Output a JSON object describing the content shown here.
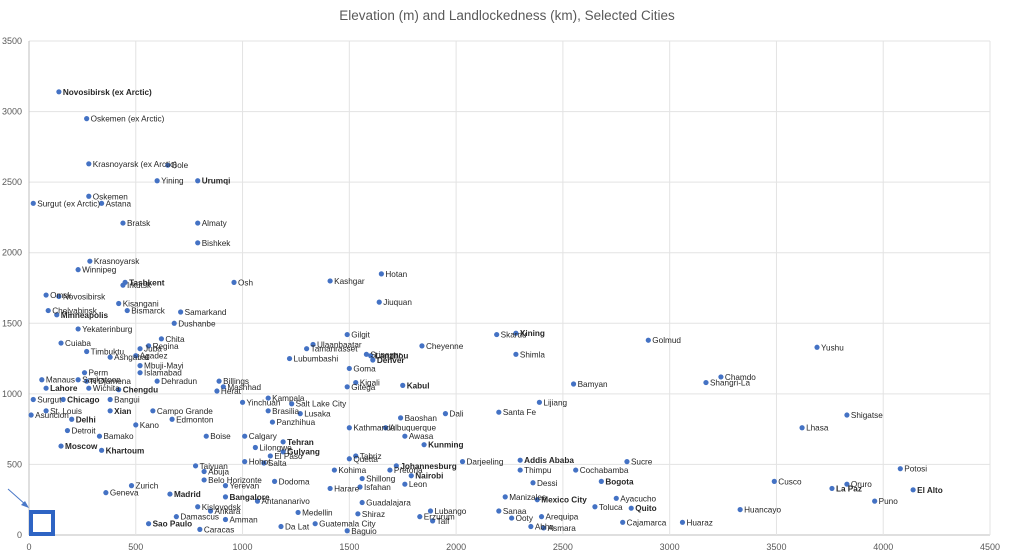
{
  "chart_data": {
    "type": "scatter",
    "title": "Elevation (m) and Landlockedness (km), Selected Cities",
    "xlabel": "",
    "ylabel": "",
    "xlim": [
      0,
      4500
    ],
    "ylim": [
      0,
      3500
    ],
    "xticks": [
      "0",
      "500",
      "1000",
      "1500",
      "2000",
      "2500",
      "3000",
      "3500",
      "4000",
      "4500"
    ],
    "yticks": [
      "0",
      "500",
      "1000",
      "1500",
      "2000",
      "2500",
      "3000",
      "3500"
    ],
    "grid": true,
    "legend": "none",
    "point_color": "#4472c4",
    "points": [
      {
        "x": 140,
        "y": 3140,
        "label": "Novosibirsk (ex Arctic)",
        "bold": true
      },
      {
        "x": 270,
        "y": 2950,
        "label": "Oskemen (ex Arctic)"
      },
      {
        "x": 280,
        "y": 2630,
        "label": "Krasnoyarsk (ex Arctic)"
      },
      {
        "x": 650,
        "y": 2620,
        "label": "Bole"
      },
      {
        "x": 600,
        "y": 2510,
        "label": "Yining"
      },
      {
        "x": 790,
        "y": 2510,
        "label": "Urumqi",
        "bold": true
      },
      {
        "x": 280,
        "y": 2400,
        "label": "Oskemen"
      },
      {
        "x": 340,
        "y": 2350,
        "label": "Astana"
      },
      {
        "x": 20,
        "y": 2350,
        "label": "Surgut (ex Arctic)"
      },
      {
        "x": 440,
        "y": 2210,
        "label": "Bratsk"
      },
      {
        "x": 790,
        "y": 2210,
        "label": "Almaty"
      },
      {
        "x": 790,
        "y": 2070,
        "label": "Bishkek"
      },
      {
        "x": 285,
        "y": 1940,
        "label": "Krasnoyarsk"
      },
      {
        "x": 230,
        "y": 1880,
        "label": "Winnipeg"
      },
      {
        "x": 1650,
        "y": 1850,
        "label": "Hotan"
      },
      {
        "x": 1410,
        "y": 1800,
        "label": "Kashgar"
      },
      {
        "x": 450,
        "y": 1790,
        "label": "Tashkent",
        "bold": true
      },
      {
        "x": 440,
        "y": 1770,
        "label": "Irkutsk"
      },
      {
        "x": 960,
        "y": 1790,
        "label": "Osh"
      },
      {
        "x": 80,
        "y": 1700,
        "label": "Omsk"
      },
      {
        "x": 140,
        "y": 1690,
        "label": "Novosibirsk"
      },
      {
        "x": 1640,
        "y": 1650,
        "label": "Jiuquan"
      },
      {
        "x": 420,
        "y": 1640,
        "label": "Kisangani"
      },
      {
        "x": 90,
        "y": 1590,
        "label": "Chelyabinsk"
      },
      {
        "x": 460,
        "y": 1590,
        "label": "Bismarck"
      },
      {
        "x": 710,
        "y": 1580,
        "label": "Samarkand"
      },
      {
        "x": 130,
        "y": 1560,
        "label": "Minneapolis",
        "bold": true
      },
      {
        "x": 680,
        "y": 1500,
        "label": "Dushanbe"
      },
      {
        "x": 230,
        "y": 1460,
        "label": "Yekaterinburg"
      },
      {
        "x": 1490,
        "y": 1420,
        "label": "Gilgit"
      },
      {
        "x": 2190,
        "y": 1420,
        "label": "Skardu"
      },
      {
        "x": 2280,
        "y": 1430,
        "label": "Xining",
        "bold": true
      },
      {
        "x": 2900,
        "y": 1380,
        "label": "Golmud"
      },
      {
        "x": 620,
        "y": 1390,
        "label": "Chita"
      },
      {
        "x": 150,
        "y": 1360,
        "label": "Cuiaba"
      },
      {
        "x": 560,
        "y": 1340,
        "label": "Regina"
      },
      {
        "x": 1330,
        "y": 1350,
        "label": "Ulaanbaatar"
      },
      {
        "x": 1840,
        "y": 1340,
        "label": "Cheyenne"
      },
      {
        "x": 3690,
        "y": 1330,
        "label": "Yushu"
      },
      {
        "x": 1300,
        "y": 1320,
        "label": "Tamanrasset"
      },
      {
        "x": 520,
        "y": 1320,
        "label": "Juba"
      },
      {
        "x": 270,
        "y": 1300,
        "label": "Timbuktu"
      },
      {
        "x": 1580,
        "y": 1280,
        "label": "Srinagar"
      },
      {
        "x": 1600,
        "y": 1270,
        "label": "Lanzhou",
        "bold": true
      },
      {
        "x": 2280,
        "y": 1280,
        "label": "Shimla"
      },
      {
        "x": 500,
        "y": 1270,
        "label": "Agadez"
      },
      {
        "x": 380,
        "y": 1260,
        "label": "Ashgabat"
      },
      {
        "x": 1220,
        "y": 1250,
        "label": "Lubumbashi"
      },
      {
        "x": 1610,
        "y": 1240,
        "label": "Denver",
        "bold": true
      },
      {
        "x": 520,
        "y": 1200,
        "label": "Mbuji-Mayi"
      },
      {
        "x": 1500,
        "y": 1180,
        "label": "Goma"
      },
      {
        "x": 260,
        "y": 1150,
        "label": "Perm"
      },
      {
        "x": 520,
        "y": 1150,
        "label": "Islamabad"
      },
      {
        "x": 230,
        "y": 1100,
        "label": "Saskatoon"
      },
      {
        "x": 3240,
        "y": 1120,
        "label": "Chamdo"
      },
      {
        "x": 60,
        "y": 1100,
        "label": "Manaus"
      },
      {
        "x": 270,
        "y": 1090,
        "label": "N'Djamena"
      },
      {
        "x": 890,
        "y": 1090,
        "label": "Billings"
      },
      {
        "x": 600,
        "y": 1090,
        "label": "Dehradun"
      },
      {
        "x": 3170,
        "y": 1080,
        "label": "Shangri-La"
      },
      {
        "x": 2550,
        "y": 1070,
        "label": "Bamyan"
      },
      {
        "x": 1530,
        "y": 1080,
        "label": "Kigali"
      },
      {
        "x": 1750,
        "y": 1060,
        "label": "Kabul",
        "bold": true
      },
      {
        "x": 910,
        "y": 1050,
        "label": "Mashhad"
      },
      {
        "x": 80,
        "y": 1040,
        "label": "Lahore",
        "bold": true
      },
      {
        "x": 280,
        "y": 1040,
        "label": "Wichita"
      },
      {
        "x": 420,
        "y": 1030,
        "label": "Chengdu",
        "bold": true
      },
      {
        "x": 1490,
        "y": 1050,
        "label": "Gitega"
      },
      {
        "x": 880,
        "y": 1020,
        "label": "Herat"
      },
      {
        "x": 20,
        "y": 960,
        "label": "Surgut"
      },
      {
        "x": 160,
        "y": 960,
        "label": "Chicago",
        "bold": true
      },
      {
        "x": 380,
        "y": 960,
        "label": "Bangui"
      },
      {
        "x": 1120,
        "y": 970,
        "label": "Kampala"
      },
      {
        "x": 2390,
        "y": 940,
        "label": "Lijiang"
      },
      {
        "x": 1000,
        "y": 940,
        "label": "Yinchuan"
      },
      {
        "x": 1230,
        "y": 930,
        "label": "Salt Lake City"
      },
      {
        "x": 80,
        "y": 880,
        "label": "St. Louis"
      },
      {
        "x": 380,
        "y": 880,
        "label": "Xian",
        "bold": true
      },
      {
        "x": 580,
        "y": 880,
        "label": "Campo Grande"
      },
      {
        "x": 1120,
        "y": 880,
        "label": "Brasilia"
      },
      {
        "x": 2200,
        "y": 870,
        "label": "Santa Fe"
      },
      {
        "x": 1950,
        "y": 860,
        "label": "Dali"
      },
      {
        "x": 3830,
        "y": 850,
        "label": "Shigatse"
      },
      {
        "x": 1270,
        "y": 860,
        "label": "Lusaka"
      },
      {
        "x": 10,
        "y": 850,
        "label": "Asuncion"
      },
      {
        "x": 200,
        "y": 820,
        "label": "Delhi",
        "bold": true
      },
      {
        "x": 1740,
        "y": 830,
        "label": "Baoshan"
      },
      {
        "x": 670,
        "y": 820,
        "label": "Edmonton"
      },
      {
        "x": 1140,
        "y": 800,
        "label": "Panzhihua"
      },
      {
        "x": 500,
        "y": 780,
        "label": "Kano"
      },
      {
        "x": 1670,
        "y": 760,
        "label": "Albuquerque"
      },
      {
        "x": 3620,
        "y": 760,
        "label": "Lhasa"
      },
      {
        "x": 1500,
        "y": 760,
        "label": "Kathmandu"
      },
      {
        "x": 180,
        "y": 740,
        "label": "Detroit"
      },
      {
        "x": 330,
        "y": 700,
        "label": "Bamako"
      },
      {
        "x": 1010,
        "y": 700,
        "label": "Calgary"
      },
      {
        "x": 830,
        "y": 700,
        "label": "Boise"
      },
      {
        "x": 1760,
        "y": 700,
        "label": "Awasa"
      },
      {
        "x": 1190,
        "y": 660,
        "label": "Tehran",
        "bold": true
      },
      {
        "x": 1850,
        "y": 640,
        "label": "Kunming",
        "bold": true
      },
      {
        "x": 150,
        "y": 630,
        "label": "Moscow",
        "bold": true
      },
      {
        "x": 340,
        "y": 600,
        "label": "Khartoum",
        "bold": true
      },
      {
        "x": 1060,
        "y": 620,
        "label": "Lilongwe"
      },
      {
        "x": 1190,
        "y": 590,
        "label": "Gulyang",
        "bold": true
      },
      {
        "x": 1130,
        "y": 560,
        "label": "El Paso"
      },
      {
        "x": 1530,
        "y": 560,
        "label": "Tabriz"
      },
      {
        "x": 1500,
        "y": 540,
        "label": "Quetta"
      },
      {
        "x": 1010,
        "y": 520,
        "label": "Hohot"
      },
      {
        "x": 1100,
        "y": 510,
        "label": "Salta"
      },
      {
        "x": 2030,
        "y": 520,
        "label": "Darjeeling"
      },
      {
        "x": 2300,
        "y": 530,
        "label": "Addis Ababa",
        "bold": true
      },
      {
        "x": 2800,
        "y": 520,
        "label": "Sucre"
      },
      {
        "x": 780,
        "y": 490,
        "label": "Taiyuan"
      },
      {
        "x": 1720,
        "y": 490,
        "label": "Johannesburg",
        "bold": true
      },
      {
        "x": 1690,
        "y": 460,
        "label": "Pretoria"
      },
      {
        "x": 4080,
        "y": 470,
        "label": "Potosi"
      },
      {
        "x": 1430,
        "y": 460,
        "label": "Kohima"
      },
      {
        "x": 2300,
        "y": 460,
        "label": "Thimpu"
      },
      {
        "x": 2560,
        "y": 460,
        "label": "Cochabamba"
      },
      {
        "x": 820,
        "y": 450,
        "label": "Abuja"
      },
      {
        "x": 1790,
        "y": 420,
        "label": "Nairobi",
        "bold": true
      },
      {
        "x": 1560,
        "y": 400,
        "label": "Shillong"
      },
      {
        "x": 820,
        "y": 390,
        "label": "Belo Horizonte"
      },
      {
        "x": 1150,
        "y": 380,
        "label": "Dodoma"
      },
      {
        "x": 2360,
        "y": 370,
        "label": "Dessi"
      },
      {
        "x": 2680,
        "y": 380,
        "label": "Bogota",
        "bold": true
      },
      {
        "x": 3490,
        "y": 380,
        "label": "Cusco"
      },
      {
        "x": 3830,
        "y": 360,
        "label": "Oruro"
      },
      {
        "x": 480,
        "y": 350,
        "label": "Zurich"
      },
      {
        "x": 920,
        "y": 350,
        "label": "Yerevan"
      },
      {
        "x": 1760,
        "y": 360,
        "label": "Leon"
      },
      {
        "x": 1550,
        "y": 340,
        "label": "Isfahan"
      },
      {
        "x": 1410,
        "y": 330,
        "label": "Harare"
      },
      {
        "x": 3760,
        "y": 330,
        "label": "La Paz",
        "bold": true
      },
      {
        "x": 4140,
        "y": 320,
        "label": "El Alto",
        "bold": true
      },
      {
        "x": 360,
        "y": 300,
        "label": "Geneva"
      },
      {
        "x": 660,
        "y": 290,
        "label": "Madrid",
        "bold": true
      },
      {
        "x": 920,
        "y": 270,
        "label": "Bangalore",
        "bold": true
      },
      {
        "x": 2230,
        "y": 270,
        "label": "Manizales"
      },
      {
        "x": 2380,
        "y": 250,
        "label": "Mexico City",
        "bold": true
      },
      {
        "x": 2750,
        "y": 260,
        "label": "Ayacucho"
      },
      {
        "x": 3960,
        "y": 240,
        "label": "Puno"
      },
      {
        "x": 1070,
        "y": 240,
        "label": "Antananarivo"
      },
      {
        "x": 1560,
        "y": 230,
        "label": "Guadalajara"
      },
      {
        "x": 790,
        "y": 200,
        "label": "Kislovodsk"
      },
      {
        "x": 2650,
        "y": 200,
        "label": "Toluca"
      },
      {
        "x": 2820,
        "y": 190,
        "label": "Quito",
        "bold": true
      },
      {
        "x": 3330,
        "y": 180,
        "label": "Huancayo"
      },
      {
        "x": 850,
        "y": 170,
        "label": "Ankara"
      },
      {
        "x": 1260,
        "y": 160,
        "label": "Medellin"
      },
      {
        "x": 1540,
        "y": 150,
        "label": "Shiraz"
      },
      {
        "x": 1880,
        "y": 170,
        "label": "Lubango"
      },
      {
        "x": 1830,
        "y": 130,
        "label": "Erzurum"
      },
      {
        "x": 2200,
        "y": 170,
        "label": "Sanaa"
      },
      {
        "x": 690,
        "y": 130,
        "label": "Damascus"
      },
      {
        "x": 920,
        "y": 110,
        "label": "Amman"
      },
      {
        "x": 2400,
        "y": 130,
        "label": "Arequipa"
      },
      {
        "x": 2260,
        "y": 120,
        "label": "Ooty"
      },
      {
        "x": 1890,
        "y": 100,
        "label": "Taif"
      },
      {
        "x": 2780,
        "y": 90,
        "label": "Cajamarca"
      },
      {
        "x": 3060,
        "y": 90,
        "label": "Huaraz"
      },
      {
        "x": 560,
        "y": 80,
        "label": "Sao Paulo",
        "bold": true
      },
      {
        "x": 1340,
        "y": 80,
        "label": "Guatemala City"
      },
      {
        "x": 1180,
        "y": 60,
        "label": "Da Lat"
      },
      {
        "x": 2350,
        "y": 60,
        "label": "Abha"
      },
      {
        "x": 2410,
        "y": 50,
        "label": "Asmara"
      },
      {
        "x": 800,
        "y": 40,
        "label": "Caracas"
      },
      {
        "x": 1490,
        "y": 30,
        "label": "Baguio"
      }
    ]
  }
}
